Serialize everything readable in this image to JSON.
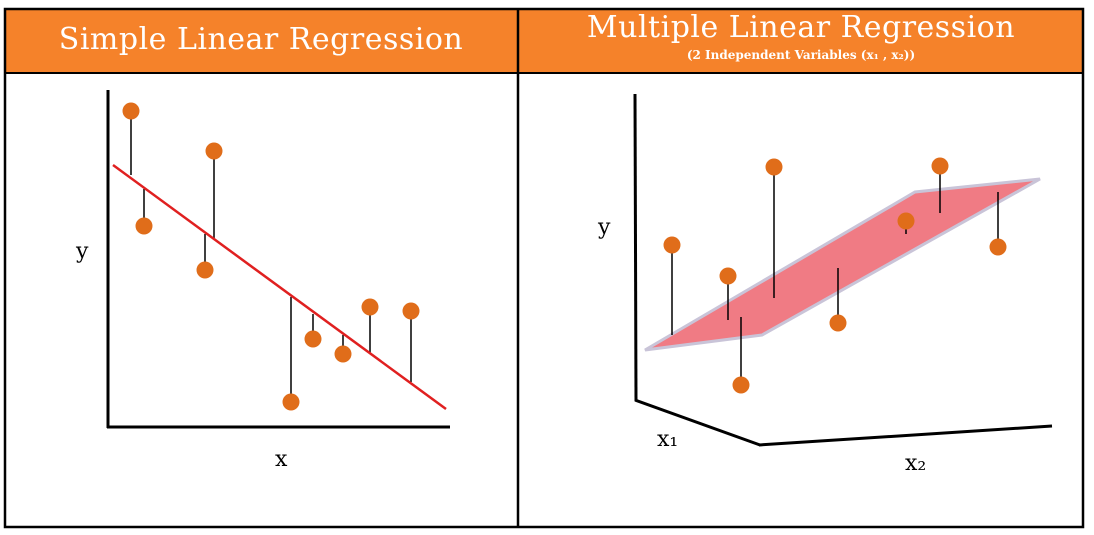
{
  "left_panel": {
    "title": "Simple Linear Regression",
    "y_label": "y",
    "x_label": "x"
  },
  "right_panel": {
    "title": "Multiple Linear Regression",
    "subtitle": "(2 Independent Variables (x₁ , x₂))",
    "y_label": "y",
    "x1_label": "x₁",
    "x2_label": "x₂"
  },
  "colors": {
    "header": "#f5822a",
    "point": "#e06d1a",
    "regression_line": "#e02020",
    "plane_fill": "#f07b84",
    "plane_edge": "#c9c4d8",
    "border": "#000000"
  }
}
